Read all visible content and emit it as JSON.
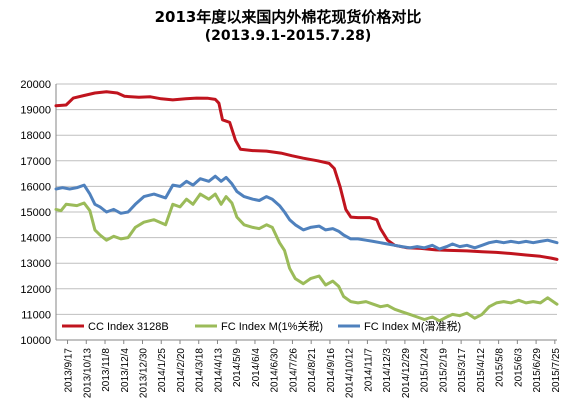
{
  "title": "2013年度以来国内外棉花现货价格对比",
  "subtitle": "(2013.9.1-2015.7.28)",
  "colors": {
    "cc": "#c0141e",
    "fcm1": "#9bbb59",
    "fcm2": "#4f81bd",
    "grid": "#bfbfbf",
    "axis": "#868686"
  },
  "chart_data": {
    "type": "line",
    "title": "2013年度以来国内外棉花现货价格对比",
    "subtitle": "(2013.9.1-2015.7.28)",
    "ylim": [
      10000,
      20000
    ],
    "yticks": [
      10000,
      11000,
      12000,
      13000,
      14000,
      15000,
      16000,
      17000,
      18000,
      19000,
      20000
    ],
    "grid": "horizontal",
    "legend": "bottom",
    "x_range": [
      "2013-09-01",
      "2015-07-28"
    ],
    "x_tick_labels": [
      "2013/9/17",
      "2013/10/13",
      "2013/11/8",
      "2013/12/4",
      "2013/12/30",
      "2014/1/25",
      "2014/2/20",
      "2014/3/18",
      "2014/4/13",
      "2014/5/9",
      "2014/6/4",
      "2014/6/30",
      "2014/7/26",
      "2014/8/21",
      "2014/9/16",
      "2014/10/12",
      "2014/11/7",
      "2014/12/3",
      "2014/12/29",
      "2015/1/24",
      "2015/2/19",
      "2015/3/17",
      "2015/4/12",
      "2015/5/8",
      "2015/6/3",
      "2015/6/29",
      "2015/7/25"
    ],
    "series": [
      {
        "name": "CC Index 3128B",
        "color": "#c0141e",
        "points": [
          [
            "2013-09-01",
            19150
          ],
          [
            "2013-09-15",
            19180
          ],
          [
            "2013-09-25",
            19450
          ],
          [
            "2013-10-10",
            19550
          ],
          [
            "2013-10-25",
            19650
          ],
          [
            "2013-11-10",
            19700
          ],
          [
            "2013-11-25",
            19650
          ],
          [
            "2013-12-05",
            19520
          ],
          [
            "2013-12-25",
            19480
          ],
          [
            "2014-01-10",
            19500
          ],
          [
            "2014-01-25",
            19420
          ],
          [
            "2014-02-10",
            19380
          ],
          [
            "2014-02-28",
            19420
          ],
          [
            "2014-03-15",
            19450
          ],
          [
            "2014-03-31",
            19440
          ],
          [
            "2014-04-10",
            19400
          ],
          [
            "2014-04-15",
            19250
          ],
          [
            "2014-04-20",
            18600
          ],
          [
            "2014-04-30",
            18500
          ],
          [
            "2014-05-08",
            17800
          ],
          [
            "2014-05-15",
            17450
          ],
          [
            "2014-06-01",
            17400
          ],
          [
            "2014-06-20",
            17380
          ],
          [
            "2014-07-10",
            17300
          ],
          [
            "2014-07-25",
            17200
          ],
          [
            "2014-08-10",
            17100
          ],
          [
            "2014-08-30",
            17000
          ],
          [
            "2014-09-15",
            16900
          ],
          [
            "2014-09-22",
            16700
          ],
          [
            "2014-09-30",
            16000
          ],
          [
            "2014-10-08",
            15100
          ],
          [
            "2014-10-15",
            14800
          ],
          [
            "2014-10-25",
            14780
          ],
          [
            "2014-11-10",
            14780
          ],
          [
            "2014-11-20",
            14700
          ],
          [
            "2014-11-25",
            14350
          ],
          [
            "2014-12-05",
            13900
          ],
          [
            "2014-12-15",
            13700
          ],
          [
            "2015-01-01",
            13600
          ],
          [
            "2015-01-20",
            13580
          ],
          [
            "2015-02-10",
            13520
          ],
          [
            "2015-03-01",
            13500
          ],
          [
            "2015-03-25",
            13480
          ],
          [
            "2015-04-15",
            13450
          ],
          [
            "2015-05-05",
            13420
          ],
          [
            "2015-05-25",
            13380
          ],
          [
            "2015-06-15",
            13320
          ],
          [
            "2015-07-05",
            13270
          ],
          [
            "2015-07-20",
            13200
          ],
          [
            "2015-07-28",
            13150
          ]
        ]
      },
      {
        "name": "FC Index M(1%关税)",
        "color": "#9bbb59",
        "points": [
          [
            "2013-09-01",
            15100
          ],
          [
            "2013-09-08",
            15050
          ],
          [
            "2013-09-15",
            15300
          ],
          [
            "2013-09-30",
            15250
          ],
          [
            "2013-10-10",
            15350
          ],
          [
            "2013-10-18",
            15050
          ],
          [
            "2013-10-25",
            14300
          ],
          [
            "2013-11-01",
            14100
          ],
          [
            "2013-11-10",
            13900
          ],
          [
            "2013-11-20",
            14050
          ],
          [
            "2013-11-30",
            13950
          ],
          [
            "2013-12-10",
            14000
          ],
          [
            "2013-12-20",
            14400
          ],
          [
            "2014-01-01",
            14600
          ],
          [
            "2014-01-15",
            14700
          ],
          [
            "2014-01-31",
            14500
          ],
          [
            "2014-02-10",
            15300
          ],
          [
            "2014-02-20",
            15200
          ],
          [
            "2014-03-01",
            15500
          ],
          [
            "2014-03-10",
            15300
          ],
          [
            "2014-03-20",
            15700
          ],
          [
            "2014-04-01",
            15500
          ],
          [
            "2014-04-10",
            15700
          ],
          [
            "2014-04-18",
            15300
          ],
          [
            "2014-04-25",
            15600
          ],
          [
            "2014-05-03",
            15350
          ],
          [
            "2014-05-10",
            14800
          ],
          [
            "2014-05-20",
            14500
          ],
          [
            "2014-06-01",
            14400
          ],
          [
            "2014-06-10",
            14350
          ],
          [
            "2014-06-20",
            14500
          ],
          [
            "2014-06-28",
            14400
          ],
          [
            "2014-07-08",
            13800
          ],
          [
            "2014-07-15",
            13500
          ],
          [
            "2014-07-22",
            12800
          ],
          [
            "2014-07-30",
            12400
          ],
          [
            "2014-08-10",
            12200
          ],
          [
            "2014-08-20",
            12400
          ],
          [
            "2014-09-01",
            12500
          ],
          [
            "2014-09-10",
            12150
          ],
          [
            "2014-09-20",
            12300
          ],
          [
            "2014-09-28",
            12100
          ],
          [
            "2014-10-05",
            11700
          ],
          [
            "2014-10-15",
            11500
          ],
          [
            "2014-10-25",
            11450
          ],
          [
            "2014-11-05",
            11500
          ],
          [
            "2014-11-15",
            11400
          ],
          [
            "2014-11-25",
            11300
          ],
          [
            "2014-12-05",
            11350
          ],
          [
            "2014-12-15",
            11200
          ],
          [
            "2014-12-25",
            11100
          ],
          [
            "2015-01-05",
            11000
          ],
          [
            "2015-01-15",
            10900
          ],
          [
            "2015-01-25",
            10800
          ],
          [
            "2015-02-05",
            10900
          ],
          [
            "2015-02-15",
            10750
          ],
          [
            "2015-02-25",
            10900
          ],
          [
            "2015-03-05",
            11000
          ],
          [
            "2015-03-15",
            10950
          ],
          [
            "2015-03-25",
            11050
          ],
          [
            "2015-04-05",
            10850
          ],
          [
            "2015-04-15",
            11000
          ],
          [
            "2015-04-25",
            11300
          ],
          [
            "2015-05-05",
            11450
          ],
          [
            "2015-05-15",
            11500
          ],
          [
            "2015-05-25",
            11450
          ],
          [
            "2015-06-05",
            11550
          ],
          [
            "2015-06-15",
            11450
          ],
          [
            "2015-06-25",
            11500
          ],
          [
            "2015-07-05",
            11450
          ],
          [
            "2015-07-15",
            11650
          ],
          [
            "2015-07-28",
            11400
          ]
        ]
      },
      {
        "name": "FC Index M(滑准税)",
        "color": "#4f81bd",
        "points": [
          [
            "2013-09-01",
            15900
          ],
          [
            "2013-09-10",
            15950
          ],
          [
            "2013-09-20",
            15900
          ],
          [
            "2013-09-30",
            15950
          ],
          [
            "2013-10-10",
            16050
          ],
          [
            "2013-10-18",
            15700
          ],
          [
            "2013-10-25",
            15300
          ],
          [
            "2013-11-01",
            15200
          ],
          [
            "2013-11-10",
            15000
          ],
          [
            "2013-11-20",
            15100
          ],
          [
            "2013-11-30",
            14950
          ],
          [
            "2013-12-10",
            15000
          ],
          [
            "2013-12-20",
            15300
          ],
          [
            "2014-01-01",
            15600
          ],
          [
            "2014-01-15",
            15700
          ],
          [
            "2014-01-31",
            15550
          ],
          [
            "2014-02-10",
            16050
          ],
          [
            "2014-02-20",
            16000
          ],
          [
            "2014-03-01",
            16200
          ],
          [
            "2014-03-10",
            16050
          ],
          [
            "2014-03-20",
            16300
          ],
          [
            "2014-04-01",
            16200
          ],
          [
            "2014-04-10",
            16400
          ],
          [
            "2014-04-18",
            16200
          ],
          [
            "2014-04-25",
            16350
          ],
          [
            "2014-05-03",
            16100
          ],
          [
            "2014-05-10",
            15800
          ],
          [
            "2014-05-20",
            15600
          ],
          [
            "2014-06-01",
            15500
          ],
          [
            "2014-06-10",
            15450
          ],
          [
            "2014-06-20",
            15600
          ],
          [
            "2014-06-28",
            15500
          ],
          [
            "2014-07-08",
            15250
          ],
          [
            "2014-07-15",
            15000
          ],
          [
            "2014-07-22",
            14700
          ],
          [
            "2014-07-30",
            14500
          ],
          [
            "2014-08-10",
            14300
          ],
          [
            "2014-08-20",
            14400
          ],
          [
            "2014-09-01",
            14450
          ],
          [
            "2014-09-10",
            14300
          ],
          [
            "2014-09-20",
            14350
          ],
          [
            "2014-09-28",
            14250
          ],
          [
            "2014-10-05",
            14100
          ],
          [
            "2014-10-15",
            13950
          ],
          [
            "2014-10-25",
            13950
          ],
          [
            "2014-11-05",
            13900
          ],
          [
            "2014-11-15",
            13850
          ],
          [
            "2014-11-25",
            13800
          ],
          [
            "2014-12-05",
            13750
          ],
          [
            "2014-12-15",
            13700
          ],
          [
            "2014-12-25",
            13650
          ],
          [
            "2015-01-05",
            13600
          ],
          [
            "2015-01-15",
            13650
          ],
          [
            "2015-01-25",
            13600
          ],
          [
            "2015-02-05",
            13700
          ],
          [
            "2015-02-15",
            13550
          ],
          [
            "2015-02-25",
            13650
          ],
          [
            "2015-03-05",
            13750
          ],
          [
            "2015-03-15",
            13650
          ],
          [
            "2015-03-25",
            13700
          ],
          [
            "2015-04-05",
            13600
          ],
          [
            "2015-04-15",
            13700
          ],
          [
            "2015-04-25",
            13800
          ],
          [
            "2015-05-05",
            13850
          ],
          [
            "2015-05-15",
            13800
          ],
          [
            "2015-05-25",
            13850
          ],
          [
            "2015-06-05",
            13800
          ],
          [
            "2015-06-15",
            13850
          ],
          [
            "2015-06-25",
            13800
          ],
          [
            "2015-07-05",
            13850
          ],
          [
            "2015-07-15",
            13900
          ],
          [
            "2015-07-28",
            13800
          ]
        ]
      }
    ]
  }
}
